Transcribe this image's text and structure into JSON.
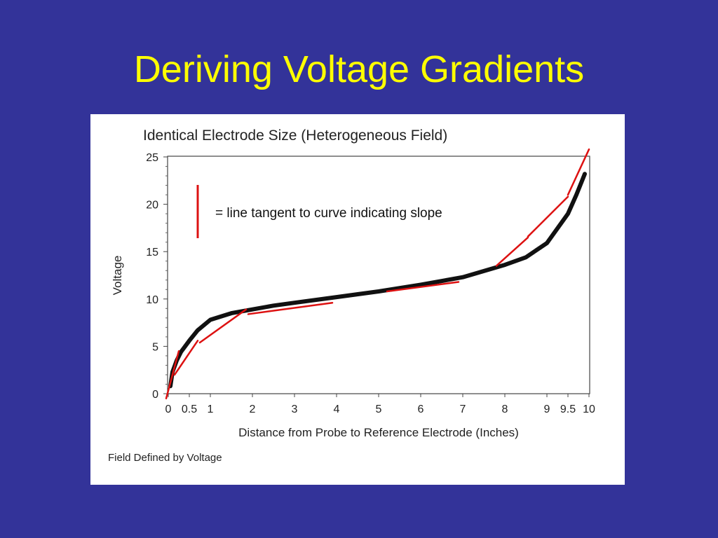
{
  "slide": {
    "title": "Deriving Voltage Gradients"
  },
  "colors": {
    "background": "#333399",
    "title": "#ffff00",
    "tangent": "#dd1111",
    "curve": "#111111"
  },
  "chart_data": {
    "type": "line",
    "title": "Identical Electrode Size (Heterogeneous Field)",
    "xlabel": "Distance from Probe to Reference Electrode (Inches)",
    "ylabel": "Voltage",
    "caption": "Field Defined by Voltage",
    "xlim": [
      0,
      10
    ],
    "ylim": [
      0,
      25
    ],
    "x_ticks": [
      {
        "value": 0,
        "label": "0"
      },
      {
        "value": 0.5,
        "label": "0.5"
      },
      {
        "value": 1,
        "label": "1"
      },
      {
        "value": 2,
        "label": "2"
      },
      {
        "value": 3,
        "label": "3"
      },
      {
        "value": 4,
        "label": "4"
      },
      {
        "value": 5,
        "label": "5"
      },
      {
        "value": 6,
        "label": "6"
      },
      {
        "value": 7,
        "label": "7"
      },
      {
        "value": 8,
        "label": "8"
      },
      {
        "value": 9,
        "label": "9"
      },
      {
        "value": 9.5,
        "label": "9.5"
      },
      {
        "value": 10,
        "label": "10"
      }
    ],
    "y_ticks": [
      0,
      5,
      10,
      15,
      20,
      25
    ],
    "grid": false,
    "legend": {
      "label": "= line tangent to curve indicating slope",
      "placement": "top-left"
    },
    "series": [
      {
        "x": [
          0.05,
          0.1,
          0.2,
          0.3,
          0.5,
          0.7,
          1.0,
          1.5,
          2.0,
          2.5,
          3.0,
          4.0,
          5.0,
          6.0,
          7.0,
          8.0,
          8.5,
          9.0,
          9.5,
          9.7,
          9.9
        ],
        "y": [
          0.8,
          2.3,
          3.5,
          4.4,
          5.6,
          6.7,
          7.8,
          8.5,
          8.9,
          9.3,
          9.6,
          10.2,
          10.8,
          11.5,
          12.3,
          13.6,
          14.4,
          15.9,
          19.0,
          21.0,
          23.2
        ]
      }
    ],
    "tangents": [
      {
        "x": [
          -0.05,
          0.25
        ],
        "y": [
          -0.5,
          4.5
        ]
      },
      {
        "x": [
          0.15,
          0.7
        ],
        "y": [
          2.0,
          5.6
        ]
      },
      {
        "x": [
          0.75,
          1.85
        ],
        "y": [
          5.4,
          8.9
        ]
      },
      {
        "x": [
          1.9,
          3.9
        ],
        "y": [
          8.4,
          9.6
        ]
      },
      {
        "x": [
          5.2,
          6.9
        ],
        "y": [
          10.8,
          11.8
        ]
      },
      {
        "x": [
          7.8,
          8.55
        ],
        "y": [
          13.5,
          16.5
        ]
      },
      {
        "x": [
          8.55,
          9.5
        ],
        "y": [
          16.6,
          20.8
        ]
      },
      {
        "x": [
          9.5,
          10.0
        ],
        "y": [
          21.0,
          25.8
        ]
      }
    ]
  }
}
